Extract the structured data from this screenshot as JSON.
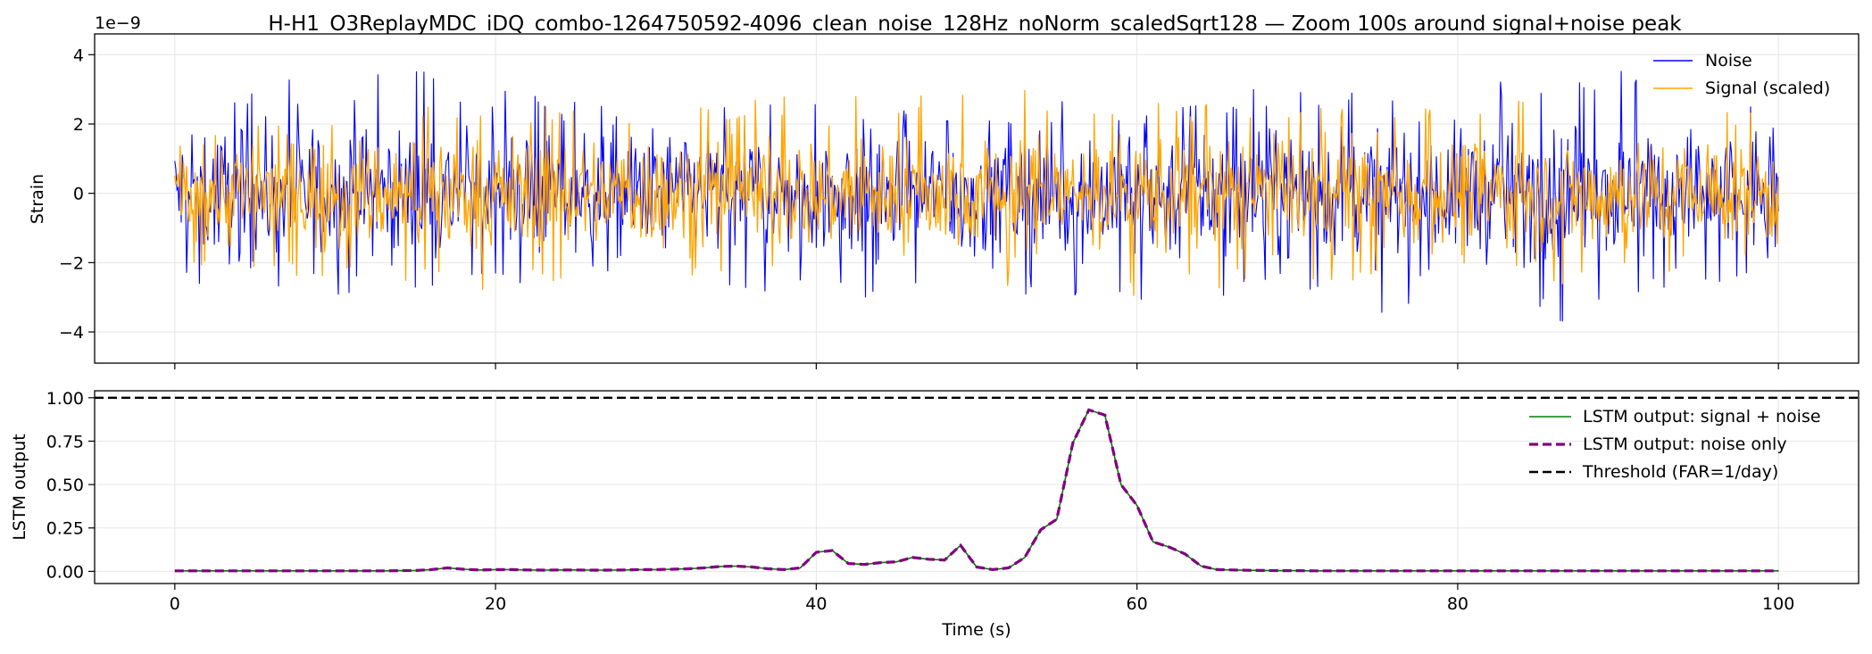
{
  "figure": {
    "title": "H-H1_O3ReplayMDC_iDQ_combo-1264750592-4096_clean_noise_128Hz_noNorm_scaledSqrt128 — Zoom 100s around signal+noise peak"
  },
  "colors": {
    "noise": "#0000ff",
    "signal": "#ffa500",
    "lstm_signal_noise": "#008000",
    "lstm_noise_only": "#800080",
    "threshold": "#000000",
    "grid": "#e6e6e6"
  },
  "chart_data": [
    {
      "type": "line",
      "ylabel": "Strain",
      "y_multiplier": "1e−9",
      "xlim": [
        -5,
        105
      ],
      "ylim": [
        -4.9,
        4.6
      ],
      "yticks": [
        -4,
        -2,
        0,
        2,
        4
      ],
      "ytick_labels": [
        "−4",
        "−2",
        "0",
        "2",
        "4"
      ],
      "grid": true,
      "legend_position": "upper-right",
      "series": [
        {
          "name": "Noise",
          "style": "solid",
          "x_range": [
            0,
            100
          ],
          "typical_amplitude": 1.7,
          "envelope_x": [
            0,
            5,
            10,
            15,
            20,
            25,
            30,
            35,
            40,
            45,
            50,
            55,
            60,
            65,
            70,
            75,
            80,
            85,
            90,
            95,
            100
          ],
          "envelope_max": [
            1.5,
            3.2,
            3.4,
            3.6,
            3.0,
            2.7,
            2.6,
            2.5,
            3.1,
            3.0,
            2.4,
            2.7,
            2.5,
            3.0,
            3.2,
            2.9,
            3.6,
            3.7,
            3.9,
            3.5,
            2.2
          ],
          "envelope_min": [
            -2.9,
            -3.1,
            -3.5,
            -3.4,
            -2.9,
            -2.8,
            -2.5,
            -2.7,
            -3.1,
            -3.6,
            -2.8,
            -3.0,
            -3.3,
            -3.5,
            -3.0,
            -3.5,
            -4.5,
            -4.0,
            -3.3,
            -3.0,
            -1.9
          ]
        },
        {
          "name": "Signal (scaled)",
          "style": "solid",
          "x_range": [
            0,
            100
          ],
          "typical_amplitude": 1.45,
          "envelope_x": [
            0,
            10,
            20,
            30,
            40,
            45,
            50,
            60,
            70,
            80,
            90,
            100
          ],
          "envelope_max": [
            1.5,
            2.5,
            2.6,
            2.5,
            3.1,
            3.0,
            3.1,
            2.8,
            2.9,
            2.6,
            2.9,
            2.4
          ],
          "envelope_min": [
            -2.0,
            -2.5,
            -3.0,
            -2.3,
            -3.1,
            -3.6,
            -2.7,
            -3.0,
            -2.8,
            -2.7,
            -2.6,
            -2.3
          ]
        }
      ]
    },
    {
      "type": "line",
      "ylabel": "LSTM output",
      "xlabel": "Time (s)",
      "xlim": [
        -5,
        105
      ],
      "ylim": [
        -0.07,
        1.04
      ],
      "xticks": [
        0,
        20,
        40,
        60,
        80,
        100
      ],
      "xtick_labels": [
        "0",
        "20",
        "40",
        "60",
        "80",
        "100"
      ],
      "yticks": [
        0.0,
        0.25,
        0.5,
        0.75,
        1.0
      ],
      "ytick_labels": [
        "0.00",
        "0.25",
        "0.50",
        "0.75",
        "1.00"
      ],
      "grid": true,
      "legend_position": "upper-right",
      "x": [
        0,
        1,
        2,
        3,
        4,
        5,
        6,
        7,
        8,
        9,
        10,
        11,
        12,
        13,
        14,
        15,
        16,
        17,
        18,
        19,
        20,
        21,
        22,
        23,
        24,
        25,
        26,
        27,
        28,
        29,
        30,
        31,
        32,
        33,
        34,
        35,
        36,
        37,
        38,
        39,
        40,
        41,
        42,
        43,
        44,
        45,
        46,
        47,
        48,
        49,
        50,
        51,
        52,
        53,
        54,
        55,
        56,
        57,
        58,
        59,
        60,
        61,
        62,
        63,
        64,
        65,
        66,
        67,
        68,
        69,
        70,
        71,
        72,
        73,
        74,
        75,
        76,
        77,
        78,
        79,
        80,
        81,
        82,
        83,
        84,
        85,
        86,
        87,
        88,
        89,
        90,
        91,
        92,
        93,
        94,
        95,
        96,
        97,
        98,
        99,
        100
      ],
      "series": [
        {
          "name": "LSTM output: signal + noise",
          "style": "solid",
          "values": [
            0.003,
            0.003,
            0.003,
            0.003,
            0.003,
            0.003,
            0.003,
            0.003,
            0.003,
            0.003,
            0.003,
            0.003,
            0.003,
            0.003,
            0.004,
            0.005,
            0.01,
            0.02,
            0.012,
            0.008,
            0.01,
            0.01,
            0.008,
            0.007,
            0.008,
            0.008,
            0.007,
            0.007,
            0.008,
            0.01,
            0.01,
            0.012,
            0.015,
            0.02,
            0.028,
            0.03,
            0.025,
            0.015,
            0.01,
            0.02,
            0.11,
            0.12,
            0.045,
            0.04,
            0.05,
            0.055,
            0.08,
            0.07,
            0.065,
            0.15,
            0.025,
            0.01,
            0.02,
            0.08,
            0.24,
            0.3,
            0.74,
            0.93,
            0.9,
            0.5,
            0.38,
            0.17,
            0.14,
            0.1,
            0.03,
            0.01,
            0.008,
            0.006,
            0.005,
            0.004,
            0.004,
            0.003,
            0.003,
            0.003,
            0.003,
            0.003,
            0.003,
            0.003,
            0.003,
            0.003,
            0.003,
            0.003,
            0.003,
            0.003,
            0.003,
            0.003,
            0.003,
            0.003,
            0.003,
            0.003,
            0.003,
            0.003,
            0.003,
            0.003,
            0.003,
            0.003,
            0.003,
            0.003,
            0.003,
            0.003,
            0.003
          ]
        },
        {
          "name": "LSTM output: noise only",
          "style": "dashed",
          "values": [
            0.003,
            0.003,
            0.003,
            0.003,
            0.003,
            0.003,
            0.003,
            0.003,
            0.003,
            0.003,
            0.003,
            0.003,
            0.003,
            0.003,
            0.004,
            0.005,
            0.01,
            0.02,
            0.012,
            0.008,
            0.01,
            0.01,
            0.008,
            0.007,
            0.008,
            0.008,
            0.007,
            0.007,
            0.008,
            0.01,
            0.01,
            0.012,
            0.015,
            0.02,
            0.028,
            0.03,
            0.025,
            0.015,
            0.01,
            0.02,
            0.11,
            0.12,
            0.045,
            0.04,
            0.05,
            0.055,
            0.08,
            0.07,
            0.065,
            0.15,
            0.025,
            0.01,
            0.02,
            0.08,
            0.24,
            0.3,
            0.74,
            0.93,
            0.9,
            0.5,
            0.38,
            0.17,
            0.14,
            0.1,
            0.03,
            0.01,
            0.008,
            0.006,
            0.005,
            0.004,
            0.004,
            0.003,
            0.003,
            0.003,
            0.003,
            0.003,
            0.003,
            0.003,
            0.003,
            0.003,
            0.003,
            0.003,
            0.003,
            0.003,
            0.003,
            0.003,
            0.003,
            0.003,
            0.003,
            0.003,
            0.003,
            0.003,
            0.003,
            0.003,
            0.003,
            0.003,
            0.003,
            0.003,
            0.003,
            0.003,
            0.003
          ]
        },
        {
          "name": "Threshold (FAR=1/day)",
          "style": "dashed",
          "constant": 1.0
        }
      ]
    }
  ]
}
